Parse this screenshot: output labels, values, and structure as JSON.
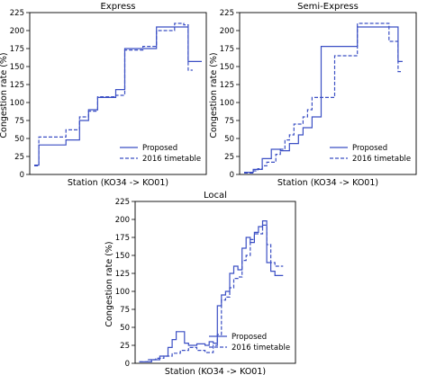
{
  "figure": {
    "shared_ylabel": "Congestion rate (%)",
    "shared_xlabel": "Station (KO34 -> KO01)",
    "series_names": [
      "Proposed",
      "2016 timetable"
    ],
    "line_color": "#3b4fc4",
    "legend_placement": "lower-right"
  },
  "chart_data": [
    {
      "type": "line",
      "title": "Express",
      "xlabel": "Station (KO34 -> KO01)",
      "ylabel": "Congestion rate (%)",
      "ylim": [
        0,
        225
      ],
      "yticks": [
        0,
        25,
        50,
        75,
        100,
        125,
        150,
        175,
        200,
        225
      ],
      "step": true,
      "legend": "lower-right",
      "series": [
        {
          "name": "Proposed",
          "style": "solid",
          "x": [
            0,
            1,
            1,
            7,
            7,
            10,
            10,
            12,
            12,
            14,
            14,
            18,
            18,
            20,
            20,
            22,
            22,
            27,
            27,
            34,
            34,
            37
          ],
          "y": [
            13,
            13,
            41,
            41,
            48,
            48,
            75,
            75,
            90,
            90,
            107,
            107,
            118,
            118,
            175,
            175,
            175,
            175,
            205,
            205,
            157,
            157
          ]
        },
        {
          "name": "2016 timetable",
          "style": "dashed",
          "x": [
            0,
            1,
            1,
            7,
            7,
            10,
            10,
            12,
            12,
            14,
            14,
            18,
            18,
            20,
            20,
            24,
            24,
            27,
            27,
            31,
            31,
            33,
            33,
            34,
            34,
            35
          ],
          "y": [
            12,
            12,
            52,
            52,
            62,
            62,
            80,
            80,
            88,
            88,
            108,
            108,
            110,
            110,
            173,
            173,
            178,
            178,
            200,
            200,
            210,
            210,
            208,
            208,
            145,
            145
          ]
        }
      ]
    },
    {
      "type": "line",
      "title": "Semi-Express",
      "xlabel": "Station (KO34 -> KO01)",
      "ylabel": "Congestion rate (%)",
      "ylim": [
        0,
        225
      ],
      "yticks": [
        0,
        25,
        50,
        75,
        100,
        125,
        150,
        175,
        200,
        225
      ],
      "step": true,
      "legend": "lower-right",
      "series": [
        {
          "name": "Proposed",
          "style": "solid",
          "x": [
            0,
            2,
            2,
            4,
            4,
            6,
            6,
            8,
            8,
            10,
            10,
            12,
            12,
            13,
            13,
            15,
            15,
            17,
            17,
            20,
            20,
            25,
            25,
            33,
            33,
            34,
            34,
            35
          ],
          "y": [
            3,
            3,
            7,
            7,
            22,
            22,
            35,
            35,
            33,
            33,
            43,
            43,
            55,
            55,
            65,
            65,
            80,
            80,
            178,
            178,
            178,
            178,
            205,
            205,
            205,
            205,
            157,
            157
          ]
        },
        {
          "name": "2016 timetable",
          "style": "dashed",
          "x": [
            0,
            2,
            2,
            3,
            3,
            4,
            4,
            5,
            5,
            7,
            7,
            8,
            8,
            9,
            9,
            10,
            10,
            11,
            11,
            13,
            13,
            14,
            14,
            15,
            15,
            20,
            20,
            25,
            25,
            32,
            32,
            34,
            34,
            35
          ],
          "y": [
            2,
            2,
            5,
            5,
            8,
            8,
            12,
            12,
            17,
            17,
            28,
            28,
            35,
            35,
            48,
            48,
            55,
            55,
            70,
            70,
            80,
            80,
            90,
            90,
            107,
            107,
            165,
            165,
            210,
            210,
            185,
            185,
            143,
            143
          ]
        }
      ]
    },
    {
      "type": "line",
      "title": "Local",
      "xlabel": "Station (KO34 -> KO01)",
      "ylabel": "Congestion rate (%)",
      "ylim": [
        0,
        225
      ],
      "yticks": [
        0,
        25,
        50,
        75,
        100,
        125,
        150,
        175,
        200,
        225
      ],
      "step": true,
      "legend": "lower-right",
      "series": [
        {
          "name": "Proposed",
          "style": "solid",
          "x": [
            0,
            3,
            3,
            5,
            5,
            7,
            7,
            8,
            8,
            9,
            9,
            11,
            11,
            12,
            12,
            14,
            14,
            16,
            16,
            17,
            17,
            18,
            18,
            19,
            19,
            20,
            20,
            21,
            21,
            22,
            22,
            23,
            23,
            24,
            24,
            25,
            25,
            26,
            26,
            27,
            27,
            28,
            28,
            29,
            29,
            30,
            30,
            31,
            31,
            32,
            32,
            33,
            33,
            34,
            34,
            35
          ],
          "y": [
            2,
            2,
            5,
            5,
            10,
            10,
            22,
            22,
            33,
            33,
            44,
            44,
            28,
            28,
            25,
            25,
            27,
            27,
            25,
            25,
            30,
            30,
            28,
            28,
            80,
            80,
            95,
            95,
            100,
            100,
            125,
            125,
            135,
            135,
            130,
            130,
            160,
            160,
            175,
            175,
            168,
            168,
            182,
            182,
            190,
            190,
            198,
            198,
            140,
            140,
            128,
            128,
            122,
            122,
            122,
            122
          ]
        },
        {
          "name": "2016 timetable",
          "style": "dashed",
          "x": [
            0,
            2,
            2,
            4,
            4,
            6,
            6,
            8,
            8,
            10,
            10,
            12,
            12,
            14,
            14,
            16,
            16,
            18,
            18,
            19,
            19,
            20,
            20,
            21,
            21,
            22,
            22,
            23,
            23,
            24,
            24,
            25,
            25,
            26,
            26,
            27,
            27,
            28,
            28,
            29,
            29,
            30,
            30,
            31,
            31,
            32,
            32,
            33,
            33,
            34,
            34,
            35
          ],
          "y": [
            2,
            2,
            5,
            5,
            7,
            7,
            10,
            10,
            14,
            14,
            18,
            18,
            22,
            22,
            18,
            18,
            15,
            15,
            25,
            25,
            40,
            40,
            88,
            88,
            92,
            92,
            105,
            105,
            118,
            118,
            120,
            120,
            143,
            143,
            150,
            150,
            172,
            172,
            180,
            180,
            180,
            180,
            192,
            192,
            165,
            165,
            140,
            140,
            135,
            135,
            135,
            135
          ]
        }
      ]
    }
  ]
}
